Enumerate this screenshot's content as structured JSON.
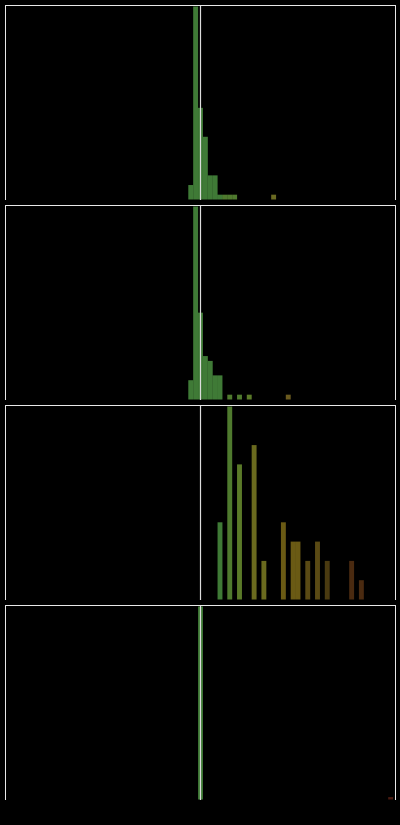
{
  "chart_data": [
    {
      "type": "bar",
      "xlim": [
        -40,
        40
      ],
      "ylim": [
        0,
        40
      ],
      "grid": false,
      "legend": "none",
      "reference_line_x": 0,
      "bars": [
        {
          "x": -2,
          "value": 3,
          "color": "#3f7a36"
        },
        {
          "x": -1,
          "value": 40,
          "color": "#3f7a36"
        },
        {
          "x": 0,
          "value": 19,
          "color": "#3f7a36"
        },
        {
          "x": 1,
          "value": 13,
          "color": "#3f7a36"
        },
        {
          "x": 2,
          "value": 5,
          "color": "#3f7a36"
        },
        {
          "x": 3,
          "value": 5,
          "color": "#3f7a36"
        },
        {
          "x": 4,
          "value": 1,
          "color": "#3f7a36"
        },
        {
          "x": 5,
          "value": 1,
          "color": "#4f7a2e"
        },
        {
          "x": 6,
          "value": 1,
          "color": "#4f7a2e"
        },
        {
          "x": 7,
          "value": 1,
          "color": "#4f7a2e"
        },
        {
          "x": 15,
          "value": 1,
          "color": "#6a6a22"
        }
      ]
    },
    {
      "type": "bar",
      "xlim": [
        -40,
        40
      ],
      "ylim": [
        0,
        40
      ],
      "grid": false,
      "legend": "none",
      "reference_line_x": 0,
      "bars": [
        {
          "x": -2,
          "value": 4,
          "color": "#3f7a36"
        },
        {
          "x": -1,
          "value": 40,
          "color": "#3f7a36"
        },
        {
          "x": 0,
          "value": 18,
          "color": "#3f7a36"
        },
        {
          "x": 1,
          "value": 9,
          "color": "#3f7a36"
        },
        {
          "x": 2,
          "value": 8,
          "color": "#3f7a36"
        },
        {
          "x": 3,
          "value": 5,
          "color": "#3f7a36"
        },
        {
          "x": 4,
          "value": 5,
          "color": "#3f7a36"
        },
        {
          "x": 6,
          "value": 1,
          "color": "#4f7a2e"
        },
        {
          "x": 8,
          "value": 1,
          "color": "#4f7a2e"
        },
        {
          "x": 10,
          "value": 1,
          "color": "#5a7a28"
        },
        {
          "x": 18,
          "value": 1,
          "color": "#6a5a1e"
        }
      ]
    },
    {
      "type": "bar",
      "xlim": [
        -40,
        40
      ],
      "ylim": [
        0,
        20
      ],
      "grid": false,
      "legend": "none",
      "reference_line_x": 0,
      "bars": [
        {
          "x": 4,
          "value": 8,
          "color": "#3f7a36"
        },
        {
          "x": 6,
          "value": 20,
          "color": "#4f7a2e"
        },
        {
          "x": 8,
          "value": 14,
          "color": "#5a7a28"
        },
        {
          "x": 11,
          "value": 16,
          "color": "#6a6a1e"
        },
        {
          "x": 13,
          "value": 4,
          "color": "#6a6a1e"
        },
        {
          "x": 17,
          "value": 8,
          "color": "#6a5a14"
        },
        {
          "x": 19,
          "value": 6,
          "color": "#6a5a14"
        },
        {
          "x": 20,
          "value": 6,
          "color": "#6a5a14"
        },
        {
          "x": 22,
          "value": 4,
          "color": "#5a4a14"
        },
        {
          "x": 24,
          "value": 6,
          "color": "#5a4a14"
        },
        {
          "x": 26,
          "value": 4,
          "color": "#4a3a10"
        },
        {
          "x": 31,
          "value": 4,
          "color": "#4a2a10"
        },
        {
          "x": 33,
          "value": 2,
          "color": "#4a2a10"
        }
      ]
    },
    {
      "type": "bar",
      "xlim": [
        -40,
        40
      ],
      "ylim": [
        0,
        40
      ],
      "grid": false,
      "legend": "none",
      "reference_line_x": 0,
      "bars": [
        {
          "x": 0,
          "value": 40,
          "color": "#3f7a36"
        },
        {
          "x": 39,
          "value": 0.5,
          "color": "#4a1a10"
        }
      ]
    }
  ]
}
